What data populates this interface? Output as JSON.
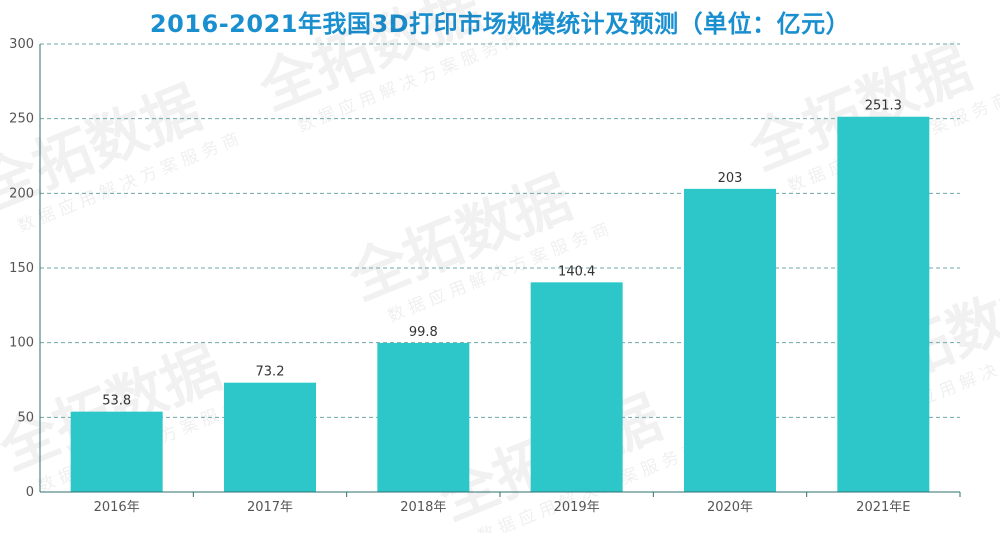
{
  "title": "2016-2021年我国3D打印市场规模统计及预测（单位：亿元）",
  "watermark": {
    "logo": "全拓数据",
    "tagline": "数据应用解决方案服务商"
  },
  "colors": {
    "bar": "#2ec7c9",
    "title": "#1a8fcf",
    "grid": "#6fa8a8",
    "axis": "#2f6f6f"
  },
  "chart_data": {
    "type": "bar",
    "title": "2016-2021年我国3D打印市场规模统计及预测（单位：亿元）",
    "categories": [
      "2016年",
      "2017年",
      "2018年",
      "2019年",
      "2020年",
      "2021年E"
    ],
    "values": [
      53.8,
      73.2,
      99.8,
      140.4,
      203,
      251.3
    ],
    "value_labels": [
      "53.8",
      "73.2",
      "99.8",
      "140.4",
      "203",
      "251.3"
    ],
    "yticks": [
      0,
      50,
      100,
      150,
      200,
      250,
      300
    ],
    "ylim": [
      0,
      300
    ],
    "xlabel": "",
    "ylabel": "",
    "grid": true,
    "grid_style": "dashed",
    "legend": "none"
  }
}
